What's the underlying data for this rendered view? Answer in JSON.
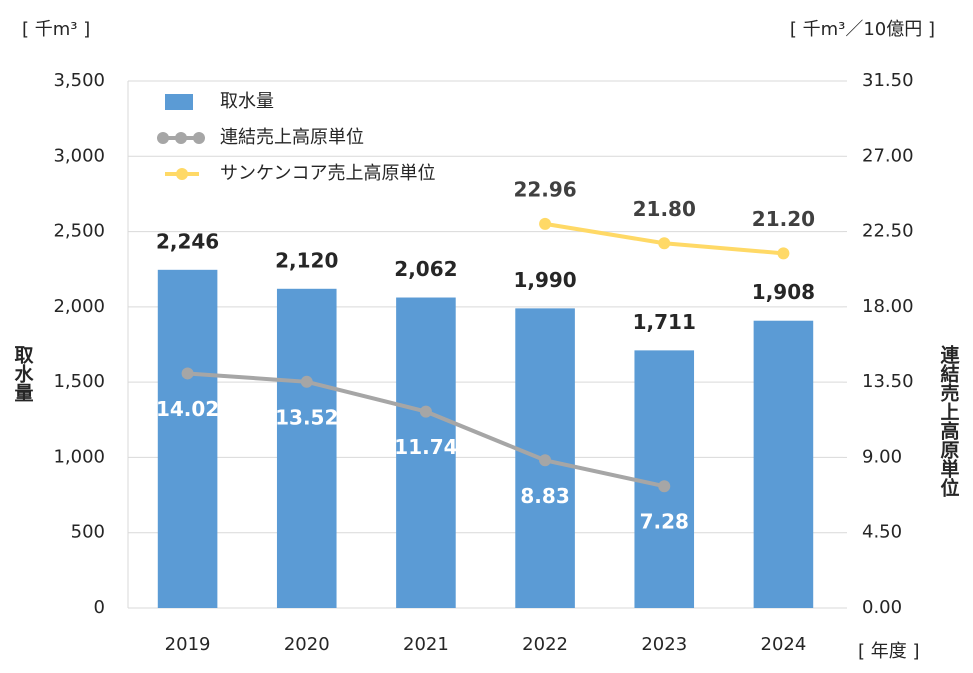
{
  "chart_data": {
    "type": "bar",
    "y_unit_label": "[ 千m³ ]",
    "y2_unit_label": "[ 千m³／10億円 ]",
    "x_unit_label": "[ 年度 ]",
    "ylabel": "取水量",
    "y2label": "連結売上高原単位",
    "categories": [
      "2019",
      "2020",
      "2021",
      "2022",
      "2023",
      "2024"
    ],
    "series": [
      {
        "name": "取水量",
        "type": "bar",
        "color": "#5b9bd5",
        "axis": "y",
        "values": [
          2246,
          2120,
          2062,
          1990,
          1711,
          1908
        ],
        "value_labels": [
          "2,246",
          "2,120",
          "2,062",
          "1,990",
          "1,711",
          "1,908"
        ]
      },
      {
        "name": "連結売上高原単位",
        "type": "line",
        "color": "#a6a6a6",
        "axis": "y2",
        "values": [
          14.02,
          13.52,
          11.74,
          8.83,
          7.28,
          null
        ],
        "value_labels": [
          "14.02",
          "13.52",
          "11.74",
          "8.83",
          "7.28",
          null
        ]
      },
      {
        "name": "サンケンコア売上高原単位",
        "type": "line",
        "color": "#ffd966",
        "axis": "y2",
        "values": [
          null,
          null,
          null,
          22.96,
          21.8,
          21.2
        ],
        "value_labels": [
          null,
          null,
          null,
          "22.96",
          "21.80",
          "21.20"
        ]
      }
    ],
    "ylim": [
      0,
      3500
    ],
    "yticks": [
      0,
      500,
      {
        "value": 1000,
        "label": "1,000"
      },
      {
        "value": 1500,
        "label": "1,500"
      },
      {
        "value": 2000,
        "label": "2,000"
      },
      {
        "value": 2500,
        "label": "2,500"
      },
      {
        "value": 3000,
        "label": "3,000"
      },
      {
        "value": 3500,
        "label": "3,500"
      }
    ],
    "y2lim": [
      0,
      31.5
    ],
    "y2ticks": [
      {
        "value": 0,
        "label": "0.00"
      },
      {
        "value": 4.5,
        "label": "4.50"
      },
      {
        "value": 9,
        "label": "9.00"
      },
      {
        "value": 13.5,
        "label": "13.50"
      },
      {
        "value": 18,
        "label": "18.00"
      },
      {
        "value": 22.5,
        "label": "22.50"
      },
      {
        "value": 27,
        "label": "27.00"
      },
      {
        "value": 31.5,
        "label": "31.50"
      }
    ],
    "grid": true,
    "legend": "upper left"
  }
}
